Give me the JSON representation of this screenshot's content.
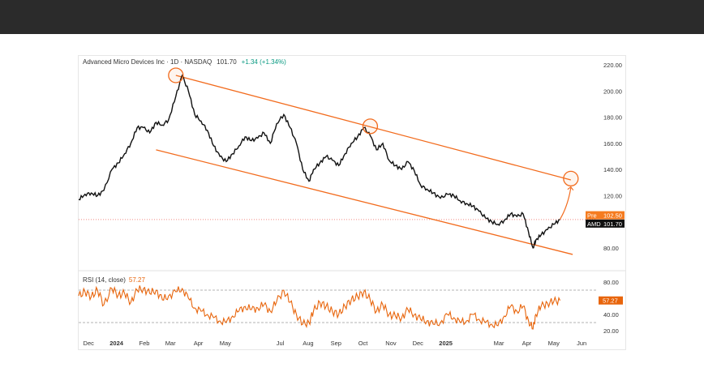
{
  "chart_data": [
    {
      "type": "line",
      "title": "Advanced Micro Devices Inc · 1D · NASDAQ",
      "last_price_text": "101.70",
      "change_text": "+1.34 (+1.34%)",
      "ylim": [
        70,
        225
      ],
      "y_ticks": [
        "220.00",
        "200.00",
        "180.00",
        "160.00",
        "140.00",
        "120.00",
        "80.00"
      ],
      "x_ticks": [
        "Dec",
        "2024",
        "Feb",
        "Mar",
        "Apr",
        "May",
        "Jul",
        "Aug",
        "Sep",
        "Oct",
        "Nov",
        "Dec",
        "2025",
        "Mar",
        "Apr",
        "May",
        "Jun"
      ],
      "price_labels": [
        {
          "tag": "Pre",
          "value": "102.50",
          "color": "#f57c20"
        },
        {
          "tag": "AMD",
          "value": "101.70",
          "color": "#111111"
        }
      ],
      "series": [
        {
          "name": "AMD",
          "color": "#111111",
          "x": [
            "2023-11-20",
            "2023-11-27",
            "2023-12-04",
            "2023-12-11",
            "2023-12-18",
            "2023-12-27",
            "2024-01-03",
            "2024-01-10",
            "2024-01-17",
            "2024-01-24",
            "2024-01-31",
            "2024-02-07",
            "2024-02-14",
            "2024-02-21",
            "2024-02-28",
            "2024-03-07",
            "2024-03-14",
            "2024-03-21",
            "2024-03-28",
            "2024-04-04",
            "2024-04-11",
            "2024-04-18",
            "2024-04-25",
            "2024-05-02",
            "2024-05-09",
            "2024-05-16",
            "2024-05-23",
            "2024-05-30",
            "2024-06-06",
            "2024-06-13",
            "2024-06-20",
            "2024-06-27",
            "2024-07-05",
            "2024-07-12",
            "2024-07-19",
            "2024-07-26",
            "2024-08-02",
            "2024-08-07",
            "2024-08-14",
            "2024-08-21",
            "2024-08-28",
            "2024-09-04",
            "2024-09-11",
            "2024-09-18",
            "2024-09-25",
            "2024-10-02",
            "2024-10-09",
            "2024-10-16",
            "2024-10-23",
            "2024-10-30",
            "2024-11-06",
            "2024-11-13",
            "2024-11-20",
            "2024-11-27",
            "2024-12-04",
            "2024-12-11",
            "2024-12-18",
            "2024-12-26",
            "2025-01-03",
            "2025-01-10",
            "2025-01-17",
            "2025-01-24",
            "2025-01-31",
            "2025-02-07",
            "2025-02-14",
            "2025-02-21",
            "2025-02-28",
            "2025-03-07",
            "2025-03-14",
            "2025-03-21",
            "2025-03-28",
            "2025-04-03",
            "2025-04-08",
            "2025-04-11",
            "2025-04-17",
            "2025-04-24",
            "2025-05-01",
            "2025-05-08"
          ],
          "values": [
            117,
            121,
            122,
            120,
            124,
            140,
            145,
            152,
            160,
            172,
            172,
            168,
            176,
            174,
            178,
            196,
            212,
            200,
            182,
            177,
            170,
            158,
            150,
            146,
            152,
            158,
            165,
            162,
            164,
            168,
            160,
            175,
            182,
            172,
            160,
            140,
            131,
            140,
            145,
            150,
            147,
            143,
            152,
            160,
            165,
            172,
            166,
            155,
            160,
            147,
            143,
            140,
            146,
            139,
            128,
            125,
            122,
            118,
            121,
            120,
            116,
            114,
            112,
            108,
            103,
            100,
            98,
            101,
            106,
            104,
            106,
            92,
            80,
            86,
            90,
            94,
            98,
            101.7
          ]
        }
      ],
      "channel": {
        "upper": {
          "from": [
            "2024-03-07",
            212
          ],
          "to": [
            "2025-05-20",
            132
          ]
        },
        "lower": {
          "from": [
            "2024-02-14",
            155
          ],
          "to": [
            "2025-05-22",
            75
          ]
        }
      },
      "highlights": [
        {
          "x": "2024-03-07",
          "y": 212
        },
        {
          "x": "2024-10-09",
          "y": 173
        },
        {
          "x": "2025-05-20",
          "y": 133
        }
      ],
      "projection": {
        "from": [
          "2025-05-08",
          102
        ],
        "to": [
          "2025-05-20",
          126
        ]
      }
    },
    {
      "type": "line",
      "title": "RSI (14, close)",
      "value_text": "57.27",
      "ylim": [
        10,
        90
      ],
      "y_ticks": [
        "80.00",
        "60.00",
        "40.00",
        "20.00"
      ],
      "reference_lines": [
        70,
        30
      ],
      "series": [
        {
          "name": "RSI",
          "color": "#e8650c",
          "values": [
            63,
            68,
            62,
            70,
            52,
            72,
            64,
            66,
            55,
            70,
            72,
            66,
            70,
            58,
            63,
            68,
            72,
            60,
            48,
            44,
            40,
            36,
            32,
            30,
            38,
            44,
            50,
            46,
            48,
            52,
            44,
            56,
            70,
            55,
            40,
            28,
            30,
            44,
            55,
            50,
            44,
            40,
            50,
            58,
            62,
            68,
            58,
            44,
            52,
            40,
            38,
            36,
            46,
            40,
            34,
            32,
            28,
            30,
            40,
            36,
            30,
            32,
            40,
            34,
            30,
            28,
            26,
            38,
            50,
            44,
            50,
            32,
            22,
            40,
            50,
            54,
            56,
            57.27
          ]
        }
      ]
    }
  ]
}
